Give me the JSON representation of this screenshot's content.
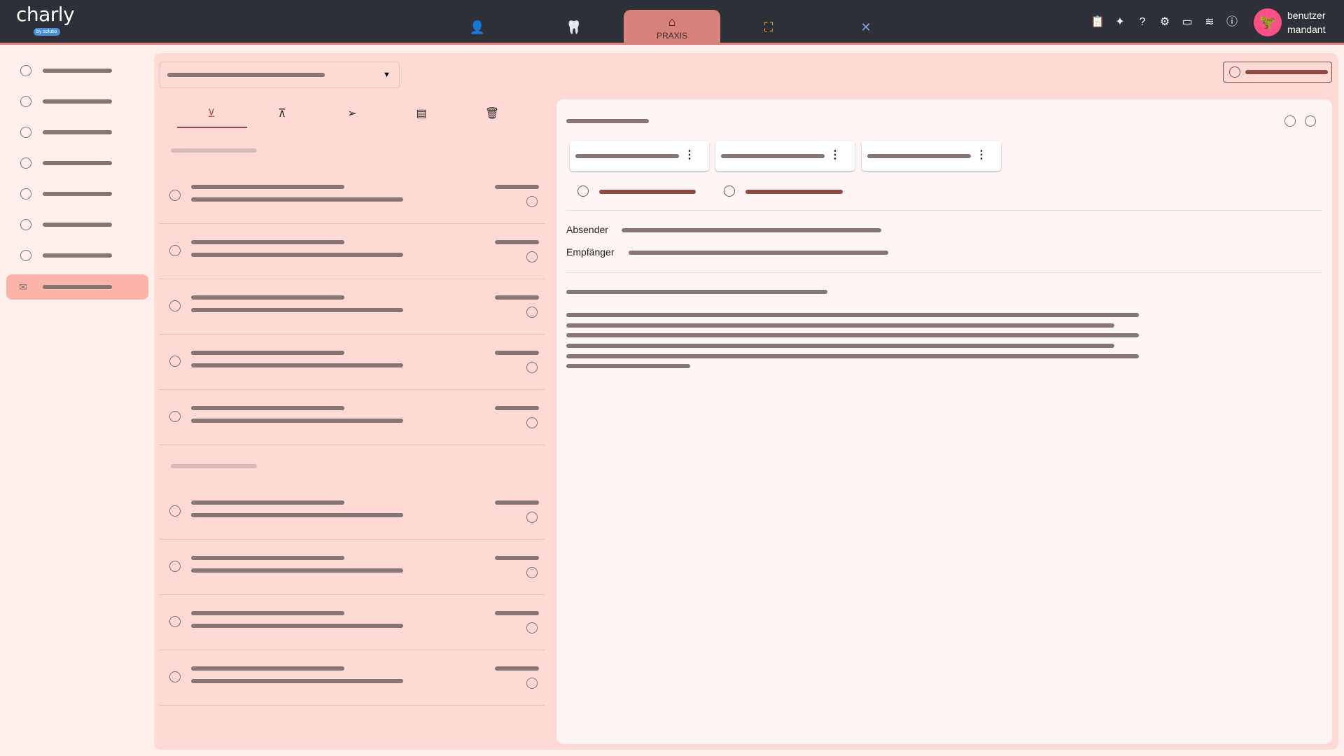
{
  "header": {
    "logo": "charly",
    "logo_sub": "by solutio",
    "nav": [
      {
        "icon": "person-icon",
        "glyph": "👤",
        "color": "#b06ce6",
        "label": ""
      },
      {
        "icon": "tooth-icon",
        "glyph": "🦷",
        "color": "#9ac07a",
        "label": ""
      },
      {
        "icon": "home-icon",
        "glyph": "⌂",
        "color": "#2e2626",
        "label": "PRAXIS",
        "active": true
      },
      {
        "icon": "org-chart-icon",
        "glyph": "⛶",
        "color": "#f0a840",
        "label": ""
      },
      {
        "icon": "tools-icon",
        "glyph": "✕",
        "color": "#7fa6e0",
        "label": ""
      }
    ],
    "right_icons": [
      {
        "icon": "clipboard-check-icon",
        "glyph": "📋"
      },
      {
        "icon": "sparkles-icon",
        "glyph": "✦"
      },
      {
        "icon": "help-icon",
        "glyph": "?"
      },
      {
        "icon": "settings-icon",
        "glyph": "⚙"
      },
      {
        "icon": "ticket-icon",
        "glyph": "▭"
      },
      {
        "icon": "handshake-icon",
        "glyph": "≋"
      },
      {
        "icon": "info-icon",
        "glyph": "ⓘ"
      }
    ],
    "user": {
      "name": "benutzer",
      "tenant": "mandant",
      "avatar_color": "#ff4f86"
    }
  },
  "sidebar": {
    "item_count": 8,
    "active_index": 7,
    "active_icon": "mail-settings-icon"
  },
  "mail_tabs": [
    {
      "icon": "inbox-download-icon",
      "active": true
    },
    {
      "icon": "outbox-upload-icon"
    },
    {
      "icon": "send-icon"
    },
    {
      "icon": "archive-icon"
    },
    {
      "icon": "trash-icon"
    }
  ],
  "list_groups": [
    {
      "rows": 5
    },
    {
      "rows": 4
    }
  ],
  "detail": {
    "sender_label": "Absender",
    "recipient_label": "Empfänger",
    "attachment_count": 3
  },
  "colors": {
    "header": "#2e3038",
    "accent": "#d9857b",
    "panel": "#ffd9d5",
    "active": "#ffb4aa",
    "redacted": "#877573",
    "danger": "#8f4a43"
  }
}
